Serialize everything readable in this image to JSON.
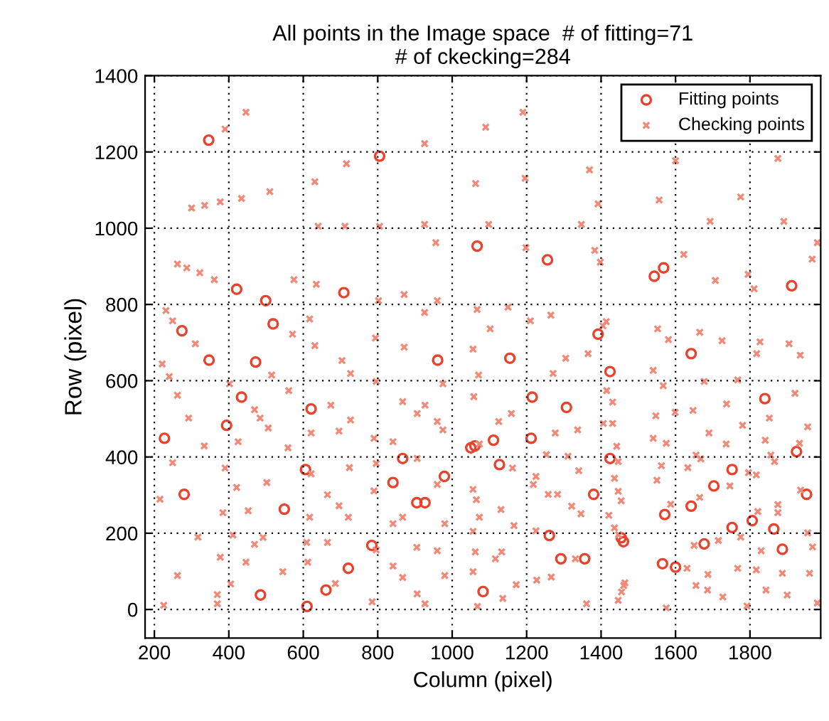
{
  "chart_data": {
    "type": "scatter",
    "title": "All points in the Image space  # of fitting=71\n# of ckecking=284",
    "xlabel": "Column (pixel)",
    "ylabel": "Row (pixel)",
    "xlim": [
      175,
      1990
    ],
    "ylim": [
      -75,
      1400
    ],
    "xticks": [
      200,
      400,
      600,
      800,
      1000,
      1200,
      1400,
      1600,
      1800
    ],
    "yticks": [
      0,
      200,
      400,
      600,
      800,
      1000,
      1200,
      1400
    ],
    "grid": true,
    "legend": "top right",
    "series": [
      {
        "name": "Fitting points",
        "color": "#e8412c",
        "marker": "circle",
        "x": [
          346,
          805,
          421,
          499,
          709,
          274,
          519,
          347,
          472,
          961,
          1155,
          1067,
          1256,
          1392,
          1543,
          1568,
          1912,
          1642,
          434,
          621,
          394,
          227,
          606,
          280,
          549,
          784,
          721,
          661,
          485,
          610,
          1215,
          1307,
          1050,
          1061,
          1111,
          1212,
          867,
          1127,
          841,
          979,
          1380,
          905,
          927,
          1261,
          1292,
          1356,
          1083,
          1424,
          1840,
          1925,
          1424,
          1752,
          1703,
          1952,
          1642,
          1571,
          1806,
          1864,
          1752,
          1454,
          1460,
          1677,
          1887,
          1565,
          1600
        ],
        "values": [
          1231,
          1189,
          840,
          810,
          831,
          731,
          749,
          654,
          649,
          654,
          659,
          953,
          917,
          722,
          874,
          896,
          849,
          671,
          557,
          526,
          483,
          449,
          367,
          302,
          263,
          168,
          108,
          51,
          38,
          8,
          557,
          530,
          424,
          429,
          444,
          449,
          396,
          380,
          333,
          349,
          302,
          280,
          280,
          194,
          133,
          133,
          47,
          624,
          553,
          414,
          396,
          367,
          324,
          302,
          271,
          249,
          233,
          211,
          215,
          188,
          178,
          172,
          158,
          120,
          111
        ]
      },
      {
        "name": "Checking points",
        "color": "#f08a78",
        "marker": "cross",
        "x": [
          446,
          390,
          716,
          631,
          510,
          434,
          377,
          335,
          300,
          640,
          712,
          805,
          262,
          287,
          322,
          361,
          575,
          635,
          802,
          231,
          249,
          617,
          571,
          310,
          631,
          794,
          704,
          221,
          1190,
          1090,
          926,
          1063,
          1196,
          1369,
          926,
          1098,
          1347,
          956,
          1198,
          1383,
          1398,
          871,
          960,
          926,
          1067,
          1150,
          1210,
          1265,
          1102,
          871,
          1056,
          1305,
          1365,
          1600,
          1875,
          1392,
          1556,
          1775,
          1693,
          1891,
          1981,
          1622,
          1707,
          1795,
          1811,
          1967,
          1414,
          1405,
          1552,
          1581,
          1665,
          1725,
          1827,
          1818,
          1905,
          1935,
          240,
          515,
          727,
          796,
          402,
          561,
          674,
          262,
          292,
          469,
          484,
          506,
          727,
          696,
          621,
          790,
          425,
          334,
          559,
          249,
          390,
          621,
          724,
          796,
          502,
          421,
          665,
          790,
          215,
          384,
          452,
          617,
          696,
          721,
          317,
          411,
          492,
          469,
          609,
          665,
          796,
          377,
          446,
          612,
          545,
          262,
          405,
          686,
          369,
          369,
          225,
          785,
          1071,
          1271,
          975,
          867,
          906,
          927,
          1058,
          1159,
          960,
          975,
          1125,
          1277,
          1337,
          841,
          1073,
          1253,
          1311,
          906,
          1162,
          1340,
          1225,
          960,
          1056,
          1218,
          1258,
          1283,
          1065,
          1321,
          1346,
          1131,
          841,
          867,
          980,
          1073,
          1166,
          1225,
          1056,
          905,
          960,
          1062,
          1133,
          1116,
          1331,
          841,
          867,
          980,
          1056,
          1266,
          1227,
          1172,
          906,
          1136,
          927,
          1068,
          1361,
          1540,
          1677,
          1767,
          1415,
          1921,
          1431,
          1567,
          1599,
          1647,
          1737,
          1547,
          1406,
          1431,
          1780,
          1852,
          1955,
          1690,
          1540,
          1575,
          1736,
          1841,
          1933,
          1442,
          1655,
          1856,
          1446,
          1668,
          1866,
          1633,
          1562,
          1796,
          1817,
          1436,
          1550,
          1746,
          1936,
          1446,
          1454,
          1665,
          1587,
          1821,
          1875,
          1875,
          1421,
          1775,
          1436,
          1447,
          1955,
          1715,
          1650,
          1830,
          1968,
          1631,
          1767,
          1817,
          1887,
          1960,
          1687,
          1464,
          1461,
          1655,
          1455,
          1843,
          1686,
          1446,
          1727,
          1900,
          1575,
          1792,
          1981
        ],
        "values": [
          1304,
          1260,
          1169,
          1122,
          1096,
          1078,
          1069,
          1060,
          1053,
          1005,
          1005,
          1005,
          906,
          896,
          883,
          865,
          865,
          853,
          810,
          784,
          757,
          762,
          722,
          697,
          692,
          712,
          653,
          644,
          1304,
          1265,
          1222,
          1117,
          1131,
          1153,
          1010,
          1010,
          1010,
          962,
          949,
          942,
          911,
          826,
          810,
          779,
          787,
          793,
          757,
          772,
          736,
          688,
          683,
          659,
          671,
          1177,
          1183,
          1064,
          1074,
          1082,
          1018,
          1018,
          962,
          931,
          863,
          879,
          841,
          919,
          755,
          744,
          736,
          708,
          727,
          705,
          702,
          671,
          697,
          667,
          611,
          615,
          619,
          598,
          592,
          574,
          536,
          562,
          502,
          524,
          502,
          476,
          497,
          468,
          463,
          449,
          440,
          429,
          424,
          385,
          371,
          356,
          372,
          383,
          333,
          320,
          301,
          311,
          289,
          254,
          259,
          242,
          272,
          242,
          190,
          195,
          189,
          171,
          176,
          176,
          156,
          137,
          124,
          124,
          99,
          89,
          67,
          68,
          39,
          15,
          11,
          20,
          615,
          619,
          592,
          545,
          514,
          536,
          558,
          514,
          493,
          471,
          493,
          463,
          471,
          440,
          434,
          406,
          402,
          396,
          371,
          364,
          349,
          328,
          315,
          328,
          302,
          302,
          288,
          271,
          251,
          262,
          225,
          242,
          225,
          242,
          220,
          206,
          205,
          163,
          154,
          151,
          151,
          133,
          133,
          114,
          84,
          89,
          99,
          85,
          77,
          65,
          41,
          29,
          15,
          8,
          15,
          627,
          598,
          602,
          574,
          567,
          544,
          587,
          517,
          522,
          539,
          508,
          488,
          488,
          483,
          502,
          479,
          463,
          449,
          436,
          434,
          444,
          436,
          428,
          405,
          405,
          388,
          395,
          388,
          372,
          377,
          359,
          353,
          344,
          339,
          324,
          313,
          310,
          285,
          294,
          276,
          257,
          275,
          254,
          247,
          190,
          214,
          196,
          201,
          181,
          168,
          154,
          164,
          108,
          108,
          104,
          95,
          95,
          92,
          70,
          63,
          63,
          46,
          51,
          51,
          24,
          33,
          38,
          4,
          9,
          17
        ]
      }
    ]
  }
}
